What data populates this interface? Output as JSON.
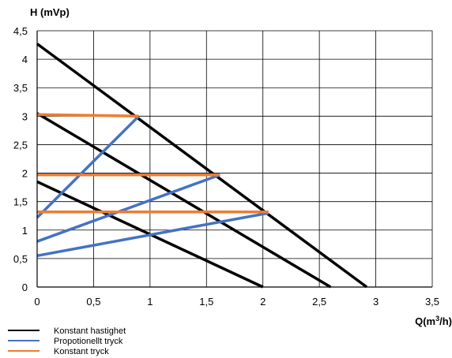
{
  "chart_data": {
    "type": "line",
    "title": "",
    "ylabel": "H (mVp)",
    "xlabel_prefix": "Q(m",
    "xlabel_sup": "3",
    "xlabel_suffix": "/h)",
    "xlim": [
      0,
      3.5
    ],
    "ylim": [
      0,
      4.5
    ],
    "x_ticks": [
      0,
      0.5,
      1,
      1.5,
      2,
      2.5,
      3,
      3.5
    ],
    "x_tick_labels": [
      "0",
      "0,5",
      "1",
      "1,5",
      "2",
      "2,5",
      "3",
      "3,5"
    ],
    "y_ticks": [
      0,
      0.5,
      1,
      1.5,
      2,
      2.5,
      3,
      3.5,
      4,
      4.5
    ],
    "y_tick_labels": [
      "0",
      "0,5",
      "1",
      "1,5",
      "2",
      "2,5",
      "3",
      "3,5",
      "4",
      "4,5"
    ],
    "grid": true,
    "legend_position": "bottom-left",
    "series": [
      {
        "name": "Konstant hastighet",
        "color": "#000000",
        "lines": [
          [
            [
              0,
              4.27
            ],
            [
              2.92,
              0
            ]
          ],
          [
            [
              0,
              3.05
            ],
            [
              2.6,
              0
            ]
          ],
          [
            [
              0,
              1.85
            ],
            [
              2.0,
              0
            ]
          ]
        ]
      },
      {
        "name": "Propotionellt tryck",
        "color": "#4472c4",
        "lines": [
          [
            [
              0,
              1.22
            ],
            [
              0.9,
              3.0
            ]
          ],
          [
            [
              0,
              0.8
            ],
            [
              1.62,
              1.97
            ]
          ],
          [
            [
              0,
              0.55
            ],
            [
              2.05,
              1.3
            ]
          ]
        ]
      },
      {
        "name": "Konstant tryck",
        "color": "#ed7d31",
        "lines": [
          [
            [
              0,
              3.03
            ],
            [
              0.9,
              3.0
            ]
          ],
          [
            [
              0,
              1.97
            ],
            [
              1.62,
              1.97
            ]
          ],
          [
            [
              0,
              1.32
            ],
            [
              2.05,
              1.32
            ]
          ]
        ]
      }
    ]
  }
}
